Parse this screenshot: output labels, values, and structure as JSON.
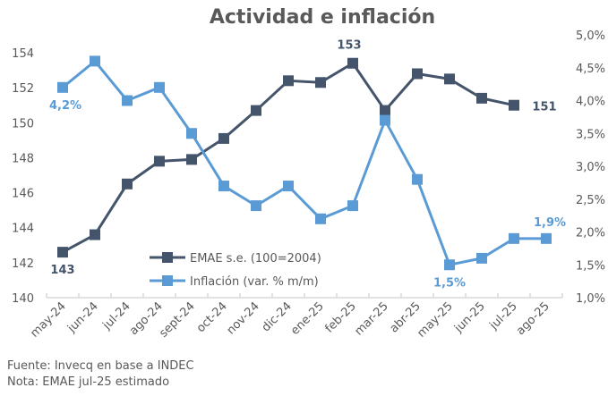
{
  "chart_data": {
    "type": "line",
    "title": "Actividad e inflación",
    "categories": [
      "may-24",
      "jun-24",
      "jul-24",
      "ago-24",
      "sept-24",
      "oct-24",
      "nov-24",
      "dic-24",
      "ene-25",
      "feb-25",
      "mar-25",
      "abr-25",
      "may-25",
      "jun-25",
      "jul-25",
      "ago-25"
    ],
    "series": [
      {
        "name": "EMAE s.e. (100=2004)",
        "axis": "left",
        "color": "#44546A",
        "values": [
          142.6,
          143.6,
          146.5,
          147.8,
          147.9,
          149.1,
          150.7,
          152.4,
          152.3,
          153.4,
          150.7,
          152.8,
          152.5,
          151.4,
          151.0,
          null
        ]
      },
      {
        "name": "Inflación (var. % m/m)",
        "axis": "right",
        "color": "#5B9BD5",
        "values": [
          4.2,
          4.6,
          4.0,
          4.2,
          3.5,
          2.7,
          2.4,
          2.7,
          2.2,
          2.4,
          3.7,
          2.8,
          1.5,
          1.6,
          1.9,
          1.9
        ]
      }
    ],
    "y_left": {
      "min": 140,
      "max": 154,
      "ticks": [
        "140",
        "142",
        "144",
        "146",
        "148",
        "150",
        "152",
        "154"
      ]
    },
    "y_right": {
      "min": 1.0,
      "max": 5.0,
      "ticks": [
        "1,0%",
        "1,5%",
        "2,0%",
        "2,5%",
        "3,0%",
        "3,5%",
        "4,0%",
        "4,5%",
        "5,0%"
      ]
    },
    "data_labels": [
      {
        "series": 0,
        "index": 0,
        "text": "143"
      },
      {
        "series": 0,
        "index": 9,
        "text": "153"
      },
      {
        "series": 0,
        "index": 14,
        "text": "151"
      },
      {
        "series": 1,
        "index": 0,
        "text": "4,2%"
      },
      {
        "series": 1,
        "index": 12,
        "text": "1,5%"
      },
      {
        "series": 1,
        "index": 15,
        "text": "1,9%"
      }
    ],
    "legend": {
      "position": "bottom-center-inside"
    },
    "grid": false
  },
  "footnotes": {
    "source": "Fuente: Invecq en base a INDEC",
    "note": "Nota: EMAE jul-25 estimado"
  }
}
